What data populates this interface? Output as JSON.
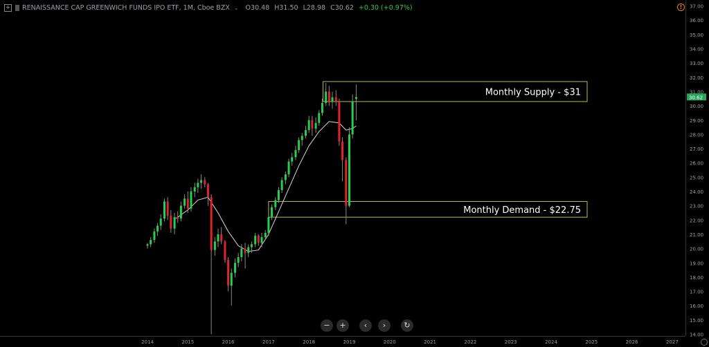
{
  "header": {
    "title": "RENAISSANCE CAP GREENWICH FUNDS IPO ETF, 1M, Cboe BZX",
    "dropdown": "⌄",
    "open": "O30.48",
    "high": "H31.50",
    "low": "L28.98",
    "close": "C30.62",
    "change": "+0.30 (+0.97%)"
  },
  "alert_icon": "!",
  "toolbar": {
    "zoom_out": "−",
    "zoom_in": "+",
    "prev": "‹",
    "next": "›",
    "reset": "↻"
  },
  "colors": {
    "up": "#26d04a",
    "down": "#e0232f",
    "ma": "#d9d9d9",
    "zone": "#b9c23a",
    "axis_text": "#9aa0a6",
    "price_tag": "#26a65b"
  },
  "chart_data": {
    "type": "candlestick",
    "title": "RENAISSANCE CAP GREENWICH FUNDS IPO ETF, 1M, Cboe BZX",
    "x_ticks": [
      "2014",
      "2015",
      "2016",
      "2017",
      "2018",
      "2019",
      "2020",
      "2021",
      "2022",
      "2023",
      "2024",
      "2025",
      "2026",
      "2027"
    ],
    "y_ticks": [
      "14.00",
      "15.00",
      "16.00",
      "17.00",
      "18.00",
      "19.00",
      "20.00",
      "21.00",
      "22.00",
      "23.00",
      "24.00",
      "25.00",
      "26.00",
      "27.00",
      "28.00",
      "29.00",
      "30.00",
      "31.00",
      "32.00",
      "33.00",
      "34.00",
      "35.00",
      "36.00",
      "37.00"
    ],
    "ylim": [
      14,
      37
    ],
    "last_price": "30.62",
    "last_price_value": 30.62,
    "ohlc": [
      [
        2014.0,
        20.2,
        20.4,
        20.0,
        20.3
      ],
      [
        2014.08,
        20.3,
        20.8,
        20.1,
        20.6
      ],
      [
        2014.17,
        20.6,
        21.4,
        20.4,
        21.2
      ],
      [
        2014.25,
        21.2,
        21.8,
        20.9,
        21.6
      ],
      [
        2014.33,
        21.6,
        22.4,
        21.3,
        22.1
      ],
      [
        2014.42,
        22.1,
        23.5,
        21.9,
        23.3
      ],
      [
        2014.5,
        23.3,
        23.6,
        22.0,
        22.3
      ],
      [
        2014.58,
        22.3,
        22.7,
        21.1,
        21.4
      ],
      [
        2014.67,
        21.4,
        22.5,
        21.0,
        22.2
      ],
      [
        2014.75,
        22.2,
        22.6,
        21.8,
        22.1
      ],
      [
        2014.83,
        22.1,
        23.3,
        21.9,
        23.0
      ],
      [
        2014.92,
        23.0,
        23.8,
        22.8,
        23.5
      ],
      [
        2015.0,
        23.5,
        24.0,
        22.5,
        22.8
      ],
      [
        2015.08,
        22.8,
        24.3,
        22.6,
        24.0
      ],
      [
        2015.17,
        24.0,
        24.6,
        23.6,
        24.3
      ],
      [
        2015.25,
        24.3,
        24.9,
        23.9,
        24.6
      ],
      [
        2015.33,
        24.6,
        25.2,
        24.2,
        24.8
      ],
      [
        2015.42,
        24.8,
        25.0,
        24.3,
        24.5
      ],
      [
        2015.5,
        24.5,
        24.6,
        23.0,
        23.6
      ],
      [
        2015.58,
        23.6,
        23.8,
        14.0,
        19.9
      ],
      [
        2015.67,
        19.9,
        20.8,
        19.5,
        20.5
      ],
      [
        2015.75,
        20.5,
        21.4,
        20.1,
        21.0
      ],
      [
        2015.83,
        21.0,
        21.5,
        20.3,
        20.5
      ],
      [
        2015.92,
        20.5,
        20.6,
        19.0,
        19.2
      ],
      [
        2016.0,
        19.2,
        19.4,
        17.0,
        17.4
      ],
      [
        2016.08,
        17.4,
        18.6,
        16.0,
        18.3
      ],
      [
        2016.17,
        18.3,
        19.3,
        18.0,
        19.0
      ],
      [
        2016.25,
        19.0,
        19.7,
        18.7,
        19.4
      ],
      [
        2016.33,
        19.4,
        20.3,
        19.1,
        20.0
      ],
      [
        2016.42,
        20.0,
        20.4,
        18.6,
        19.7
      ],
      [
        2016.5,
        19.7,
        20.3,
        19.4,
        20.1
      ],
      [
        2016.58,
        20.1,
        20.5,
        19.7,
        20.3
      ],
      [
        2016.67,
        20.3,
        21.1,
        20.1,
        20.9
      ],
      [
        2016.75,
        20.9,
        21.0,
        20.2,
        20.4
      ],
      [
        2016.83,
        20.4,
        21.1,
        20.1,
        20.8
      ],
      [
        2016.92,
        20.8,
        21.3,
        20.6,
        21.1
      ],
      [
        2017.0,
        21.1,
        22.5,
        20.9,
        22.2
      ],
      [
        2017.08,
        22.2,
        23.1,
        22.0,
        22.9
      ],
      [
        2017.17,
        22.9,
        23.6,
        22.7,
        23.4
      ],
      [
        2017.25,
        23.4,
        24.3,
        23.2,
        24.1
      ],
      [
        2017.33,
        24.1,
        25.0,
        23.9,
        24.8
      ],
      [
        2017.42,
        24.8,
        25.4,
        24.5,
        25.2
      ],
      [
        2017.5,
        25.2,
        26.3,
        25.0,
        26.1
      ],
      [
        2017.58,
        26.1,
        26.7,
        25.8,
        26.4
      ],
      [
        2017.67,
        26.4,
        27.2,
        26.2,
        26.9
      ],
      [
        2017.75,
        26.9,
        27.8,
        26.7,
        27.6
      ],
      [
        2017.83,
        27.6,
        28.1,
        27.2,
        27.9
      ],
      [
        2017.92,
        27.9,
        28.6,
        27.7,
        28.3
      ],
      [
        2018.0,
        28.3,
        29.3,
        28.1,
        29.0
      ],
      [
        2018.08,
        29.0,
        29.3,
        27.9,
        28.4
      ],
      [
        2018.17,
        28.4,
        29.2,
        28.1,
        28.8
      ],
      [
        2018.25,
        28.8,
        29.7,
        28.6,
        29.5
      ],
      [
        2018.33,
        29.5,
        30.5,
        29.3,
        30.2
      ],
      [
        2018.42,
        30.2,
        31.6,
        30.0,
        31.0
      ],
      [
        2018.5,
        31.0,
        31.4,
        30.0,
        30.3
      ],
      [
        2018.58,
        30.3,
        31.0,
        29.8,
        30.6
      ],
      [
        2018.67,
        30.6,
        31.1,
        30.0,
        30.3
      ],
      [
        2018.75,
        30.3,
        30.5,
        27.2,
        27.5
      ],
      [
        2018.83,
        27.5,
        27.8,
        24.7,
        26.2
      ],
      [
        2018.92,
        26.2,
        26.4,
        21.7,
        23.0
      ],
      [
        2019.0,
        23.0,
        28.5,
        22.9,
        28.0
      ],
      [
        2019.08,
        28.0,
        30.8,
        27.7,
        30.32
      ],
      [
        2019.17,
        30.48,
        31.5,
        28.98,
        30.62
      ]
    ],
    "ma": [
      [
        2014.7,
        22.1
      ],
      [
        2015.0,
        22.7
      ],
      [
        2015.25,
        23.4
      ],
      [
        2015.5,
        23.6
      ],
      [
        2015.75,
        22.5
      ],
      [
        2016.0,
        21.2
      ],
      [
        2016.25,
        20.2
      ],
      [
        2016.5,
        19.8
      ],
      [
        2016.75,
        19.9
      ],
      [
        2017.0,
        21.0
      ],
      [
        2017.25,
        22.6
      ],
      [
        2017.5,
        24.2
      ],
      [
        2017.75,
        25.8
      ],
      [
        2018.0,
        27.2
      ],
      [
        2018.25,
        28.2
      ],
      [
        2018.5,
        28.9
      ],
      [
        2018.75,
        28.8
      ],
      [
        2018.92,
        28.3
      ],
      [
        2019.08,
        28.4
      ],
      [
        2019.17,
        28.6
      ]
    ],
    "zones": [
      {
        "label": "Monthly Supply - $31",
        "x0": 2018.35,
        "y_top": 31.7,
        "y_bottom": 30.3
      },
      {
        "label": "Monthly Demand - $22.75",
        "x0": 2017.0,
        "y_top": 23.3,
        "y_bottom": 22.2
      }
    ]
  }
}
